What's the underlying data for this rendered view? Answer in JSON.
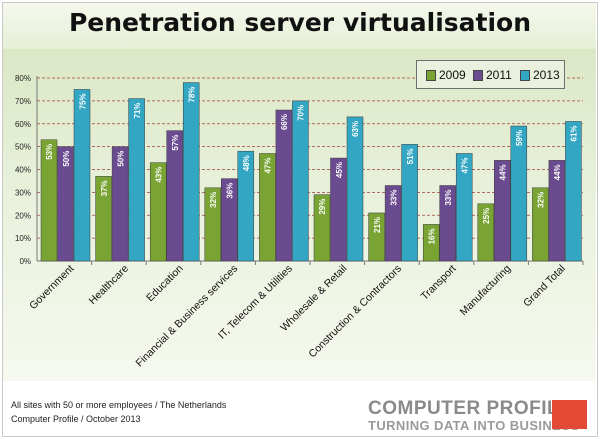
{
  "colors": {
    "s2009": "#79a434",
    "s2011": "#6b4b8f",
    "s2013": "#33a6c3",
    "grid": "#a0413a",
    "brand_red": "#e34a33"
  },
  "footer": {
    "line1": "All sites with 50 or more employees / The Netherlands",
    "line2": "Computer Profile / October 2013"
  },
  "brand": {
    "name": "COMPUTER PROFILE",
    "tagline": "TURNING DATA INTO BUSINESS"
  },
  "chart_data": {
    "type": "bar",
    "title": "Penetration server virtualisation",
    "xlabel": "",
    "ylabel": "",
    "ylim": [
      0,
      80
    ],
    "yticks": [
      "0%",
      "10%",
      "20%",
      "30%",
      "40%",
      "50%",
      "60%",
      "70%",
      "80%"
    ],
    "grid": true,
    "legend_position": "top-right",
    "categories": [
      "Government",
      "Healthcare",
      "Education",
      "Financial & Business services",
      "IT, Telecom & Utilities",
      "Wholesale & Retail",
      "Construction & Contractors",
      "Transport",
      "Manufacturing",
      "Grand Total"
    ],
    "series": [
      {
        "name": "2009",
        "values": [
          53,
          37,
          43,
          32,
          47,
          29,
          21,
          16,
          25,
          32
        ],
        "labels": [
          "53%",
          "37%",
          "43%",
          "32%",
          "47%",
          "29%",
          "21%",
          "16%",
          "25%",
          "32%"
        ]
      },
      {
        "name": "2011",
        "values": [
          50,
          50,
          57,
          36,
          66,
          45,
          33,
          33,
          44,
          44
        ],
        "labels": [
          "50%",
          "50%",
          "57%",
          "36%",
          "66%",
          "45%",
          "33%",
          "33%",
          "44%",
          "44%"
        ]
      },
      {
        "name": "2013",
        "values": [
          75,
          71,
          78,
          48,
          70,
          63,
          51,
          47,
          59,
          61
        ],
        "labels": [
          "75%",
          "71%",
          "78%",
          "48%",
          "70%",
          "63%",
          "51%",
          "47%",
          "59%",
          "61%"
        ]
      }
    ]
  }
}
